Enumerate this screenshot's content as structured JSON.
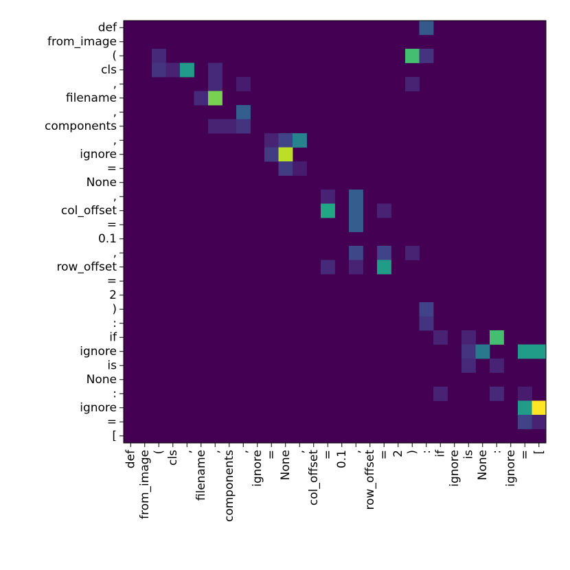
{
  "chart_data": {
    "type": "heatmap",
    "title": "",
    "xlabel": "",
    "ylabel": "",
    "colormap": "viridis",
    "vmin": 0,
    "vmax": 1,
    "tokens": [
      "def",
      "from_image",
      "(",
      "cls",
      ",",
      "filename",
      ",",
      "components",
      ",",
      "ignore",
      "=",
      "None",
      ",",
      "col_offset",
      "=",
      "0.1",
      ",",
      "row_offset",
      "=",
      "2",
      ")",
      ":",
      "if",
      "ignore",
      "is",
      "None",
      ":",
      "ignore",
      "=",
      "["
    ],
    "cells": [
      [
        0,
        21,
        0.28
      ],
      [
        2,
        2,
        0.12
      ],
      [
        2,
        20,
        0.7
      ],
      [
        2,
        21,
        0.15
      ],
      [
        3,
        2,
        0.15
      ],
      [
        3,
        3,
        0.1
      ],
      [
        3,
        4,
        0.55
      ],
      [
        3,
        6,
        0.12
      ],
      [
        4,
        6,
        0.12
      ],
      [
        4,
        8,
        0.08
      ],
      [
        4,
        20,
        0.1
      ],
      [
        5,
        5,
        0.12
      ],
      [
        5,
        6,
        0.8
      ],
      [
        6,
        8,
        0.3
      ],
      [
        7,
        6,
        0.1
      ],
      [
        7,
        7,
        0.1
      ],
      [
        7,
        8,
        0.15
      ],
      [
        8,
        10,
        0.1
      ],
      [
        8,
        11,
        0.2
      ],
      [
        8,
        12,
        0.45
      ],
      [
        9,
        10,
        0.18
      ],
      [
        9,
        11,
        0.9
      ],
      [
        10,
        11,
        0.18
      ],
      [
        10,
        12,
        0.08
      ],
      [
        12,
        14,
        0.1
      ],
      [
        12,
        16,
        0.3
      ],
      [
        13,
        14,
        0.6
      ],
      [
        13,
        16,
        0.3
      ],
      [
        13,
        18,
        0.1
      ],
      [
        14,
        16,
        0.3
      ],
      [
        16,
        16,
        0.22
      ],
      [
        16,
        18,
        0.2
      ],
      [
        16,
        20,
        0.1
      ],
      [
        17,
        14,
        0.12
      ],
      [
        17,
        16,
        0.1
      ],
      [
        17,
        18,
        0.55
      ],
      [
        20,
        21,
        0.2
      ],
      [
        21,
        21,
        0.15
      ],
      [
        22,
        22,
        0.1
      ],
      [
        22,
        24,
        0.1
      ],
      [
        22,
        26,
        0.7
      ],
      [
        23,
        24,
        0.15
      ],
      [
        23,
        25,
        0.4
      ],
      [
        23,
        28,
        0.55
      ],
      [
        23,
        29,
        0.55
      ],
      [
        24,
        24,
        0.12
      ],
      [
        24,
        26,
        0.1
      ],
      [
        26,
        22,
        0.1
      ],
      [
        26,
        26,
        0.12
      ],
      [
        26,
        28,
        0.08
      ],
      [
        27,
        28,
        0.55
      ],
      [
        27,
        29,
        1.0
      ],
      [
        28,
        28,
        0.2
      ],
      [
        28,
        29,
        0.1
      ]
    ]
  }
}
